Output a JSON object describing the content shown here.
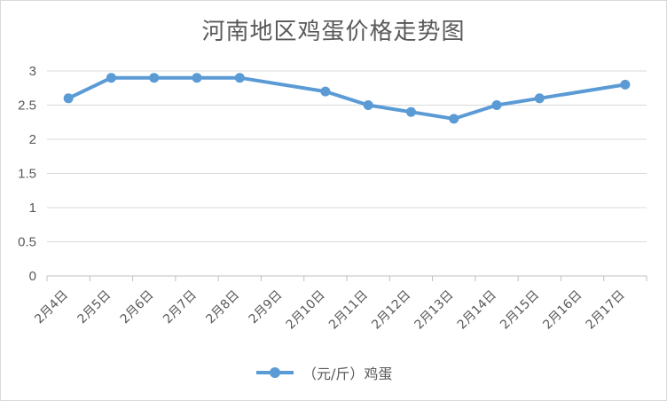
{
  "chart_data": {
    "type": "line",
    "title": "河南地区鸡蛋价格走势图",
    "categories": [
      "2月4日",
      "2月5日",
      "2月6日",
      "2月7日",
      "2月8日",
      "2月9日",
      "2月10日",
      "2月11日",
      "2月12日",
      "2月13日",
      "2月14日",
      "2月15日",
      "2月16日",
      "2月17日"
    ],
    "series": [
      {
        "name": "（元/斤）鸡蛋",
        "values": [
          2.6,
          2.9,
          2.9,
          2.9,
          2.9,
          null,
          2.7,
          2.5,
          2.4,
          2.3,
          2.5,
          2.6,
          null,
          2.8
        ],
        "color": "#5b9bd5"
      }
    ],
    "ylim": [
      0,
      3
    ],
    "yticks": [
      "0",
      "0.5",
      "1",
      "1.5",
      "2",
      "2.5",
      "3"
    ],
    "grid": true,
    "legend": "bottom",
    "xlabel": "",
    "ylabel": ""
  }
}
